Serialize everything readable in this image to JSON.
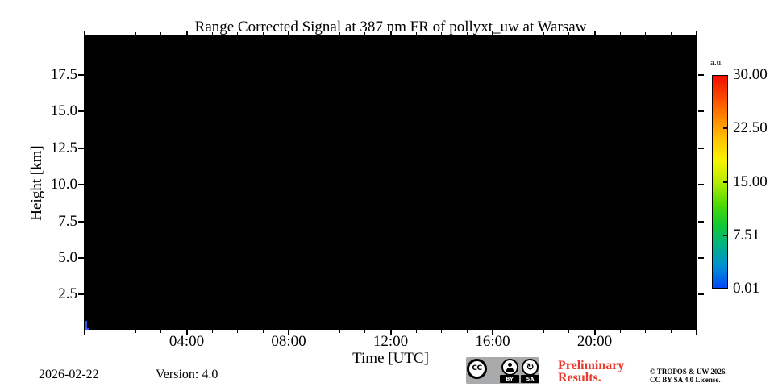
{
  "chart_data": {
    "type": "heatmap",
    "title": "Range Corrected Signal at 387 nm FR of pollyxt_uw at Warsaw",
    "xlabel": "Time [UTC]",
    "ylabel": "Height [km]",
    "xlim": [
      0,
      24
    ],
    "ylim": [
      0,
      20
    ],
    "x_major_ticks": [
      {
        "hour": 0,
        "label": ""
      },
      {
        "hour": 4,
        "label": "04:00"
      },
      {
        "hour": 8,
        "label": "08:00"
      },
      {
        "hour": 12,
        "label": "12:00"
      },
      {
        "hour": 16,
        "label": "16:00"
      },
      {
        "hour": 20,
        "label": "20:00"
      },
      {
        "hour": 24,
        "label": ""
      }
    ],
    "x_minor_tick_every_hours": 1,
    "y_major_ticks": [
      {
        "km": 2.5,
        "label": "2.5"
      },
      {
        "km": 5.0,
        "label": "5.0"
      },
      {
        "km": 7.5,
        "label": "7.5"
      },
      {
        "km": 10.0,
        "label": "10.0"
      },
      {
        "km": 12.5,
        "label": "12.5"
      },
      {
        "km": 15.0,
        "label": "15.0"
      },
      {
        "km": 17.5,
        "label": "17.5"
      }
    ],
    "colorbar": {
      "unit_label": "a.u.",
      "min": 0.01,
      "max": 30.0,
      "tick_values": [
        30.0,
        22.5,
        15.0,
        7.51,
        0.01
      ],
      "tick_labels": [
        "30.00",
        "22.50",
        "15.00",
        "7.51",
        "0.01"
      ],
      "colormap": "jet",
      "gradient_top_to_bottom": [
        "#f30b00",
        "#fa4700",
        "#ff8800",
        "#ffc400",
        "#f8f400",
        "#b7ec00",
        "#52dc00",
        "#12c92e",
        "#00b287",
        "#008fd6",
        "#0048f5"
      ]
    },
    "background": {
      "description": "entire heatmap black (no / saturated-low signal all day)",
      "color": "#000000"
    },
    "features": [
      {
        "name": "low-altitude signal patch at start of day",
        "color": "#2e55f2",
        "rects": [
          {
            "t0": 0.0,
            "t1": 0.09,
            "h0": 0.0,
            "h1": 0.72
          },
          {
            "t0": 0.0,
            "t1": 0.17,
            "h0": 0.0,
            "h1": 0.18
          }
        ]
      }
    ]
  },
  "footer": {
    "date": "2026-02-22",
    "version": "Version: 4.0",
    "preliminary_line1": "Preliminary",
    "preliminary_line2": "Results.",
    "copyright_line1": "© TROPOS & UW 2026.",
    "copyright_line2": "CC BY SA 4.0 License.",
    "badge": {
      "cc": "CC",
      "by": "BY",
      "sa": "SA"
    }
  },
  "icons": {
    "sa_arrow": "↻"
  },
  "colors": {
    "preliminary_red": "#e8392e",
    "badge_gray": "#a9aaac",
    "signal_blue": "#2e55f2",
    "plot_background": "#000000"
  }
}
